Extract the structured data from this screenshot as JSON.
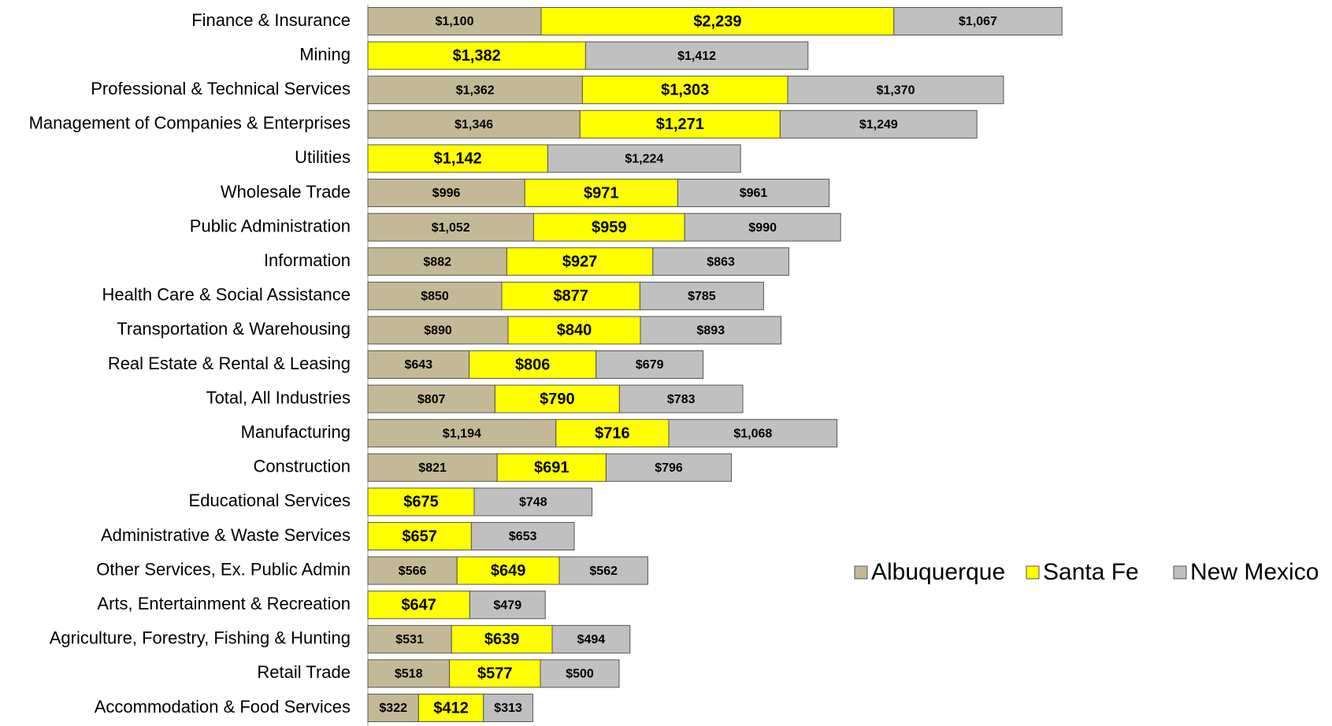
{
  "chart_data": {
    "type": "stacked-bar-horizontal",
    "categories": [
      "Finance & Insurance",
      "Mining",
      "Professional & Technical Services",
      "Management of Companies & Enterprises",
      "Utilities",
      "Wholesale Trade",
      "Public Administration",
      "Information",
      "Health Care & Social Assistance",
      "Transportation & Warehousing",
      "Real Estate & Rental & Leasing",
      "Total, All Industries",
      "Manufacturing",
      "Construction",
      "Educational Services",
      "Administrative & Waste Services",
      "Other Services, Ex. Public Admin",
      "Arts, Entertainment & Recreation",
      "Agriculture, Forestry, Fishing & Hunting",
      "Retail Trade",
      "Accommodation & Food Services"
    ],
    "series": [
      {
        "name": "Albuquerque",
        "color": "#c4b997",
        "values": [
          1100,
          null,
          1362,
          1346,
          null,
          996,
          1052,
          882,
          850,
          890,
          643,
          807,
          1194,
          821,
          null,
          null,
          566,
          null,
          531,
          518,
          322
        ],
        "value_labels": [
          "$1,100",
          null,
          "$1,362",
          "$1,346",
          null,
          "$996",
          "$1,052",
          "$882",
          "$850",
          "$890",
          "$643",
          "$807",
          "$1,194",
          "$821",
          null,
          null,
          "$566",
          null,
          "$531",
          "$518",
          "$322"
        ]
      },
      {
        "name": "Santa Fe",
        "color": "#ffff00",
        "values": [
          2239,
          1382,
          1303,
          1271,
          1142,
          971,
          959,
          927,
          877,
          840,
          806,
          790,
          716,
          691,
          675,
          657,
          649,
          647,
          639,
          577,
          412
        ],
        "value_labels": [
          "$2,239",
          "$1,382",
          "$1,303",
          "$1,271",
          "$1,142",
          "$971",
          "$959",
          "$927",
          "$877",
          "$840",
          "$806",
          "$790",
          "$716",
          "$691",
          "$675",
          "$657",
          "$649",
          "$647",
          "$639",
          "$577",
          "$412"
        ]
      },
      {
        "name": "New Mexico",
        "color": "#c0c0c0",
        "values": [
          1067,
          1412,
          1370,
          1249,
          1224,
          961,
          990,
          863,
          785,
          893,
          679,
          783,
          1068,
          796,
          748,
          653,
          562,
          479,
          494,
          500,
          313
        ],
        "value_labels": [
          "$1,067",
          "$1,412",
          "$1,370",
          "$1,249",
          "$1,224",
          "$961",
          "$990",
          "$863",
          "$785",
          "$893",
          "$679",
          "$783",
          "$1,068",
          "$796",
          "$748",
          "$653",
          "$562",
          "$479",
          "$494",
          "$500",
          "$313"
        ]
      }
    ],
    "legend": "right"
  }
}
